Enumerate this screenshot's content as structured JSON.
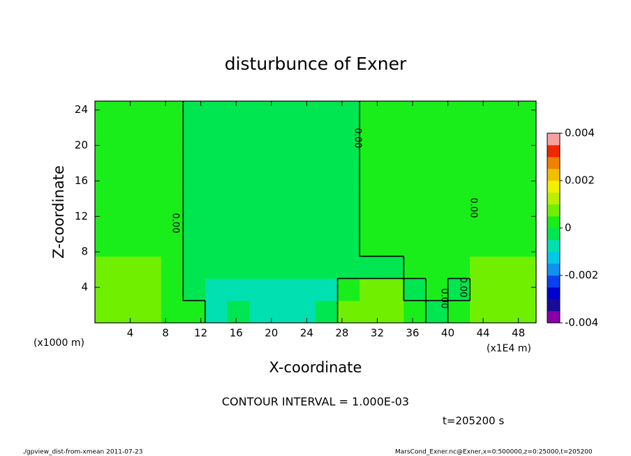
{
  "chart_data": {
    "type": "contour",
    "title": "disturbunce of Exner",
    "x_label": "X-coordinate",
    "y_label": "Z-coordinate",
    "x_unit_left": "(x1000 m)",
    "x_unit_right": "(x1E4 m)",
    "contour_interval": "CONTOUR INTERVAL = 1.000E-03",
    "time_label": "t=205200 s",
    "footer_left": "./gpview_dist-from-xmean  2011-07-23",
    "footer_right": "MarsCond_Exner.nc@Exner,x=0:500000,z=0:25000,t=205200",
    "contour_labels": [
      "0.00",
      "0.00",
      "0.00",
      "0.00",
      "0.00"
    ],
    "xlim": [
      0,
      50
    ],
    "ylim": [
      0,
      25
    ],
    "xticks": [
      4,
      8,
      12,
      16,
      20,
      24,
      28,
      32,
      36,
      40,
      44,
      48
    ],
    "yticks": [
      4,
      8,
      12,
      16,
      20,
      24
    ],
    "clim": [
      -0.004,
      0.004
    ],
    "cticks": [
      -0.004,
      -0.002,
      0,
      0.002,
      0.004
    ],
    "colors": [
      "#8a00a8",
      "#1a0a9a",
      "#0000cc",
      "#0a40f0",
      "#1090f0",
      "#00c8e8",
      "#00e0b0",
      "#00e650",
      "#1aee1a",
      "#70f000",
      "#b8f000",
      "#f0f000",
      "#f0c000",
      "#f08000",
      "#f02800",
      "#f8a0a0"
    ],
    "values": [
      [
        0.0007,
        0.0007,
        0.0007,
        0.0002,
        0.0002,
        -0.0008,
        -0.0002,
        -0.0008,
        -0.0008,
        -0.0008,
        -0.0002,
        0.0007,
        0.0007,
        0.0007,
        0.0002,
        -0.0002,
        0.0002,
        0.0007,
        0.0007,
        0.0007
      ],
      [
        0.0007,
        0.0007,
        0.0007,
        0.0002,
        -0.0002,
        -0.0008,
        -0.0008,
        -0.0008,
        -0.0008,
        -0.0008,
        -0.0008,
        0.0002,
        0.0007,
        0.0007,
        -0.0002,
        0.0002,
        -0.0002,
        0.0007,
        0.0007,
        0.0007
      ],
      [
        0.0007,
        0.0007,
        0.0007,
        0.0002,
        -0.0002,
        -0.0002,
        -0.0002,
        -0.0002,
        -0.0002,
        -0.0002,
        -0.0002,
        -0.0002,
        -0.0002,
        -0.0002,
        0.0002,
        0.0002,
        0.0002,
        0.0007,
        0.0007,
        0.0007
      ],
      [
        0.0002,
        0.0002,
        0.0002,
        0.0002,
        -0.0002,
        -0.0002,
        -0.0002,
        -0.0002,
        -0.0002,
        -0.0002,
        -0.0002,
        -0.0002,
        0.0002,
        0.0002,
        0.0002,
        0.0002,
        0.0002,
        0.0002,
        0.0002,
        0.0002
      ],
      [
        0.0002,
        0.0002,
        0.0002,
        0.0002,
        -0.0002,
        -0.0002,
        -0.0002,
        -0.0002,
        -0.0002,
        -0.0002,
        -0.0002,
        -0.0002,
        0.0002,
        0.0002,
        0.0002,
        0.0002,
        0.0002,
        0.0002,
        0.0002,
        0.0002
      ],
      [
        0.0002,
        0.0002,
        0.0002,
        0.0002,
        -0.0002,
        -0.0002,
        -0.0002,
        -0.0002,
        -0.0002,
        -0.0002,
        -0.0002,
        -0.0002,
        0.0002,
        0.0002,
        0.0002,
        0.0002,
        0.0002,
        0.0002,
        0.0002,
        0.0002
      ],
      [
        0.0002,
        0.0002,
        0.0002,
        0.0002,
        -0.0002,
        -0.0002,
        -0.0002,
        -0.0002,
        -0.0002,
        -0.0002,
        -0.0002,
        -0.0002,
        0.0002,
        0.0002,
        0.0002,
        0.0002,
        0.0002,
        0.0002,
        0.0002,
        0.0002
      ],
      [
        0.0002,
        0.0002,
        0.0002,
        0.0002,
        -0.0002,
        -0.0002,
        -0.0002,
        -0.0002,
        -0.0002,
        -0.0002,
        -0.0002,
        -0.0002,
        0.0002,
        0.0002,
        0.0002,
        0.0002,
        0.0002,
        0.0002,
        0.0002,
        0.0002
      ],
      [
        0.0002,
        0.0002,
        0.0002,
        0.0002,
        -0.0002,
        -0.0002,
        -0.0002,
        -0.0002,
        -0.0002,
        -0.0002,
        -0.0002,
        -0.0002,
        0.0002,
        0.0002,
        0.0002,
        0.0002,
        0.0002,
        0.0002,
        0.0002,
        0.0002
      ],
      [
        0.0002,
        0.0002,
        0.0002,
        0.0002,
        -0.0002,
        -0.0002,
        -0.0002,
        -0.0002,
        -0.0002,
        -0.0002,
        -0.0002,
        -0.0002,
        0.0002,
        0.0002,
        0.0002,
        0.0002,
        0.0002,
        0.0002,
        0.0002,
        0.0002
      ]
    ]
  }
}
